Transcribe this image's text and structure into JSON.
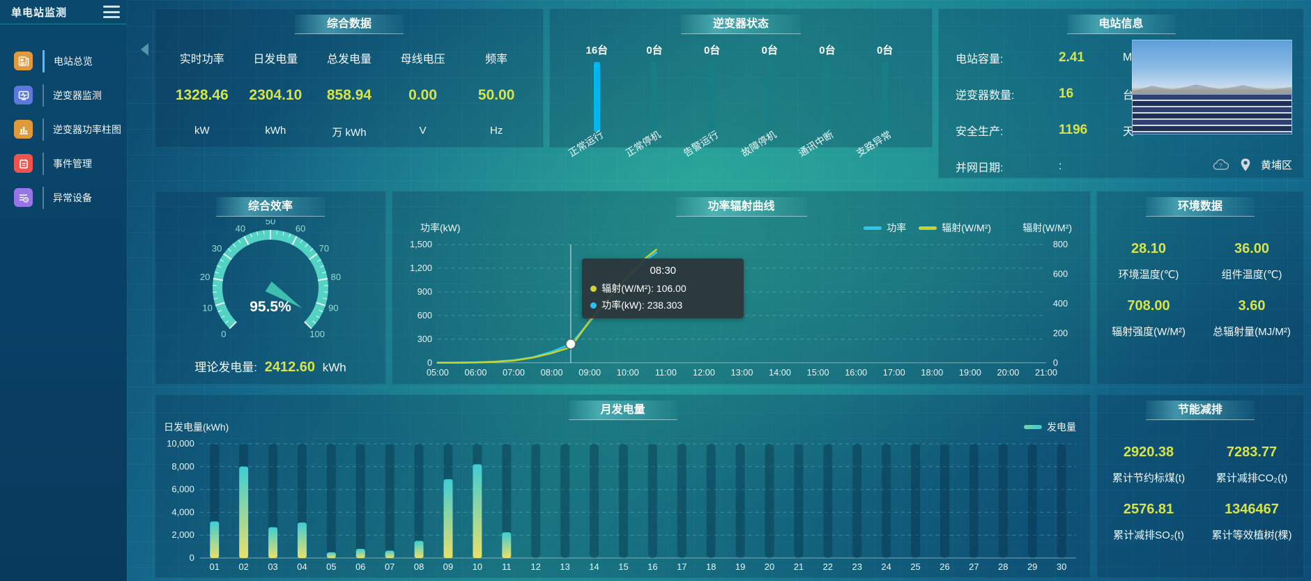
{
  "app": {
    "title": "单电站监测"
  },
  "sidebar": {
    "items": [
      {
        "label": "电站总览",
        "icon": "overview-icon",
        "color": "#e09a3e",
        "active": true
      },
      {
        "label": "逆变器监测",
        "icon": "inverter-monitor-icon",
        "color": "#5b79dd",
        "active": false
      },
      {
        "label": "逆变器功率柱图",
        "icon": "power-bar-chart-icon",
        "color": "#e09a3e",
        "active": false
      },
      {
        "label": "事件管理",
        "icon": "event-management-icon",
        "color": "#ef5350",
        "active": false
      },
      {
        "label": "异常设备",
        "icon": "abnormal-device-icon",
        "color": "#9575e8",
        "active": false
      }
    ]
  },
  "summary": {
    "title": "综合数据",
    "metrics": [
      {
        "label": "实时功率",
        "value": "1328.46",
        "unit": "kW"
      },
      {
        "label": "日发电量",
        "value": "2304.10",
        "unit": "kWh"
      },
      {
        "label": "总发电量",
        "value": "858.94",
        "unit": "万 kWh"
      },
      {
        "label": "母线电压",
        "value": "0.00",
        "unit": "V"
      },
      {
        "label": "频率",
        "value": "50.00",
        "unit": "Hz"
      }
    ]
  },
  "inverter_status": {
    "title": "逆变器状态",
    "bars": [
      {
        "count": "16台",
        "label": "正常运行",
        "highlight": true
      },
      {
        "count": "0台",
        "label": "正常停机",
        "highlight": false
      },
      {
        "count": "0台",
        "label": "告警运行",
        "highlight": false
      },
      {
        "count": "0台",
        "label": "故障停机",
        "highlight": false
      },
      {
        "count": "0台",
        "label": "通讯中断",
        "highlight": false
      },
      {
        "count": "0台",
        "label": "支路异常",
        "highlight": false
      }
    ],
    "highlight_color": "#00b6ee",
    "normal_color": "#187f86"
  },
  "station_info": {
    "title": "电站信息",
    "rows": [
      {
        "label": "电站容量:",
        "value": "2.41",
        "unit": "MW"
      },
      {
        "label": "逆变器数量:",
        "value": "16",
        "unit": "台"
      },
      {
        "label": "安全生产:",
        "value": "1196",
        "unit": "天"
      },
      {
        "label": "并网日期:",
        "value": ":",
        "unit": ""
      }
    ],
    "location": "黄埔区"
  },
  "efficiency": {
    "title": "综合效率",
    "value_display": "95.5%",
    "footer_label": "理论发电量:",
    "footer_value": "2412.60",
    "footer_unit": "kWh"
  },
  "power_curve": {
    "title": "功率辐射曲线",
    "y_left_name": "功率(kW)",
    "y_right_name": "辐射(W/M²)",
    "legend": [
      {
        "label": "功率",
        "color": "#29c8f2"
      },
      {
        "label": "辐射(W/M²)",
        "color": "#c6d32f"
      }
    ],
    "tooltip": {
      "time": "08:30",
      "rows": [
        {
          "label": "辐射(W/M²)",
          "value": "106.00",
          "color": "#d6d42c"
        },
        {
          "label": "功率(kW)",
          "value": "238.303",
          "color": "#2ec0f0"
        }
      ]
    }
  },
  "environment": {
    "title": "环境数据",
    "cells": [
      {
        "value": "28.10",
        "label": "环境温度(℃)"
      },
      {
        "value": "36.00",
        "label": "组件温度(℃)"
      },
      {
        "value": "708.00",
        "label": "辐射强度(W/M²)"
      },
      {
        "value": "3.60",
        "label": "总辐射量(MJ/M²)"
      }
    ]
  },
  "monthly": {
    "title": "月发电量",
    "y_name": "日发电量(kWh)",
    "legend_label": "发电量"
  },
  "energy_saving": {
    "title": "节能减排",
    "cells": [
      {
        "value": "2920.38",
        "label": "累计节约标煤(t)"
      },
      {
        "value": "7283.77",
        "label": "累计减排CO₂(t)"
      },
      {
        "value": "2576.81",
        "label": "累计减排SO₂(t)"
      },
      {
        "value": "1346467",
        "label": "累计等效植树(棵)"
      }
    ]
  },
  "chart_data": [
    {
      "id": "efficiency_gauge",
      "type": "gauge",
      "title": "综合效率",
      "value": 95.5,
      "value_display": "95.5%",
      "min": 0,
      "max": 100,
      "major_tick_step": 10,
      "minor_tick_step": 2.5,
      "arc_color": "#52d3c4",
      "label_color": "#9adcd3"
    },
    {
      "id": "power_radiation",
      "type": "line",
      "title": "功率辐射曲线",
      "x_range": [
        5,
        21
      ],
      "x_ticks": [
        "05:00",
        "06:00",
        "07:00",
        "08:00",
        "09:00",
        "10:00",
        "11:00",
        "12:00",
        "13:00",
        "14:00",
        "15:00",
        "16:00",
        "17:00",
        "18:00",
        "19:00",
        "20:00",
        "21:00"
      ],
      "y_left": {
        "name": "功率(kW)",
        "range": [
          0,
          1500
        ],
        "step": 300
      },
      "y_right": {
        "name": "辐射(W/M²)",
        "range": [
          0,
          800
        ],
        "step": 200
      },
      "grid": true,
      "legend_position": "top-right",
      "series": [
        {
          "name": "功率",
          "axis": "left",
          "color": "#29c8f2",
          "points": [
            [
              5,
              0
            ],
            [
              5.5,
              1
            ],
            [
              6,
              5
            ],
            [
              6.5,
              14
            ],
            [
              7,
              32
            ],
            [
              7.5,
              70
            ],
            [
              8,
              140
            ],
            [
              8.5,
              238.3
            ],
            [
              9,
              520
            ],
            [
              9.5,
              800
            ],
            [
              10,
              1075
            ],
            [
              10.5,
              1310
            ],
            [
              10.75,
              1400
            ]
          ]
        },
        {
          "name": "辐射(W/M²)",
          "axis": "right",
          "color": "#c6d32f",
          "points": [
            [
              5,
              0
            ],
            [
              5.5,
              0
            ],
            [
              6,
              2
            ],
            [
              6.5,
              6
            ],
            [
              7,
              15
            ],
            [
              7.5,
              35
            ],
            [
              8,
              65
            ],
            [
              8.5,
              106
            ],
            [
              9,
              285
            ],
            [
              9.5,
              440
            ],
            [
              10,
              590
            ],
            [
              10.5,
              715
            ],
            [
              10.75,
              765
            ]
          ]
        }
      ],
      "marker": {
        "x": 8.5,
        "time": "08:30",
        "power": 238.303,
        "radiation": 106.0
      }
    },
    {
      "id": "monthly_generation",
      "type": "bar",
      "title": "月发电量",
      "categories": [
        "01",
        "02",
        "03",
        "04",
        "05",
        "06",
        "07",
        "08",
        "09",
        "10",
        "11",
        "12",
        "13",
        "14",
        "15",
        "16",
        "17",
        "18",
        "19",
        "20",
        "21",
        "22",
        "23",
        "24",
        "25",
        "26",
        "27",
        "28",
        "29",
        "30"
      ],
      "values": [
        3200,
        8000,
        2700,
        3100,
        500,
        800,
        650,
        1500,
        6900,
        8200,
        2250,
        0,
        0,
        0,
        0,
        0,
        0,
        0,
        0,
        0,
        0,
        0,
        0,
        0,
        0,
        0,
        0,
        0,
        0,
        0
      ],
      "y": {
        "name": "日发电量(kWh)",
        "range": [
          0,
          10000
        ],
        "step": 2000
      },
      "legend": [
        "发电量"
      ],
      "bar_gradient": [
        "#e9e06a",
        "#3fccd4"
      ],
      "grid": true
    }
  ]
}
